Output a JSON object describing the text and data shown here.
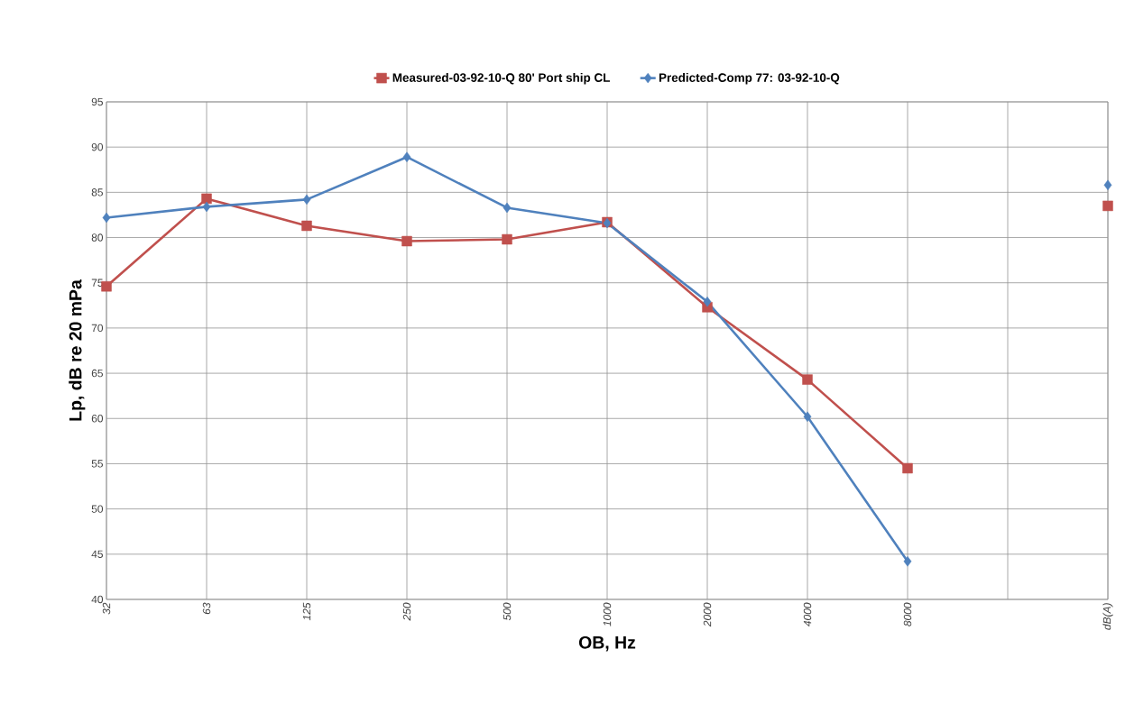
{
  "chart_data": {
    "type": "line",
    "xlabel": "OB, Hz",
    "ylabel": "Lp, dB re 20 mPa",
    "categories": [
      "32",
      "63",
      "125",
      "250",
      "500",
      "1000",
      "2000",
      "4000",
      "8000",
      null,
      "dB(A)"
    ],
    "series": [
      {
        "name": "Measured-03-92-10-Q 80' Port ship CL",
        "color": "#c0504d",
        "marker": "square",
        "values": [
          74.6,
          84.3,
          81.3,
          79.6,
          79.8,
          81.7,
          72.3,
          64.3,
          54.5,
          null,
          83.5
        ]
      },
      {
        "name": "Predicted-Comp 77: 03-92-10-Q",
        "color": "#4f81bd",
        "marker": "diamond",
        "values": [
          82.2,
          83.4,
          84.2,
          88.9,
          83.3,
          81.6,
          72.9,
          60.2,
          44.2,
          null,
          85.8
        ]
      }
    ],
    "ylim": [
      40,
      95
    ],
    "yticks": [
      40,
      45,
      50,
      55,
      60,
      65,
      70,
      75,
      80,
      85,
      90,
      95
    ],
    "grid": true,
    "legend": "top",
    "line_style": "solid"
  }
}
